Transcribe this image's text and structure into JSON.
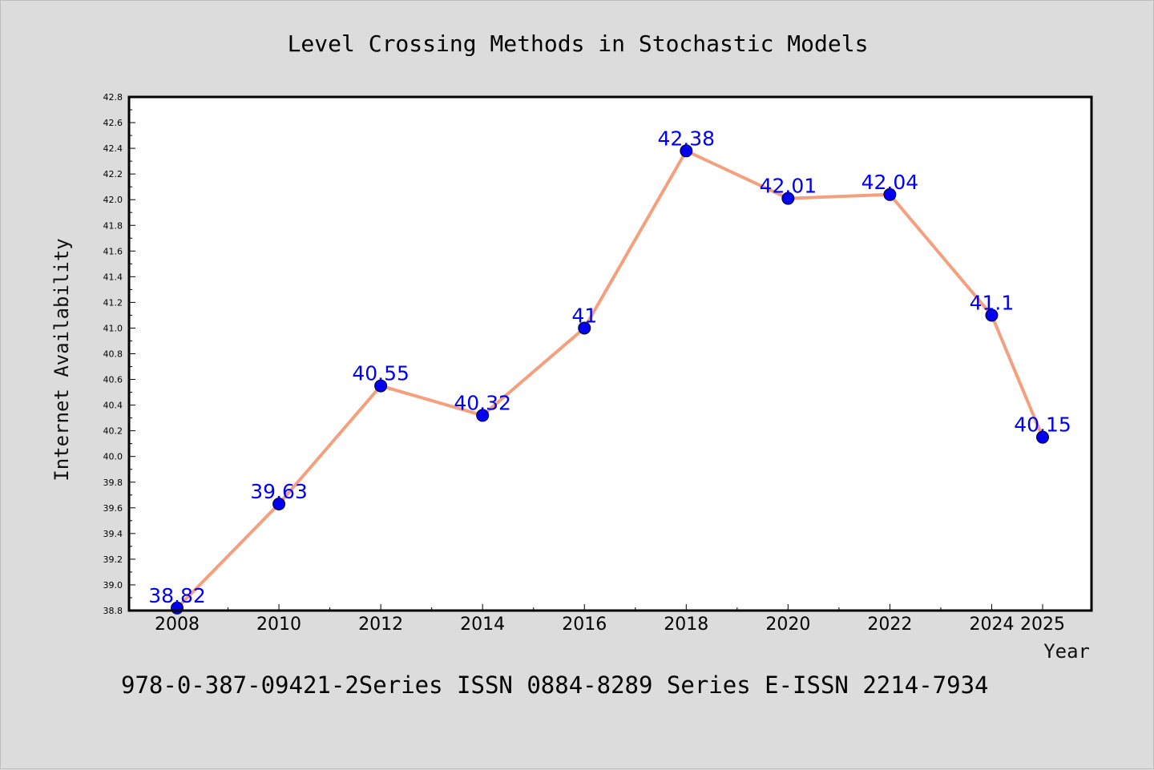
{
  "chart_data": {
    "type": "line",
    "title": "Level Crossing Methods in Stochastic Models",
    "xlabel": "Year",
    "ylabel": "Internet Availability",
    "footer": "978-0-387-09421-2Series ISSN 0884-8289 Series E-ISSN 2214-7934",
    "categories": [
      "2008",
      "2010",
      "2012",
      "2014",
      "2016",
      "2018",
      "2020",
      "2022",
      "2024",
      "2025"
    ],
    "series": [
      {
        "values": [
          38.82,
          39.63,
          40.55,
          40.32,
          41,
          42.38,
          42.01,
          42.04,
          41.1,
          40.15
        ],
        "data_labels": [
          "38.82",
          "39.63",
          "40.55",
          "40.32",
          "41",
          "42.38",
          "42.01",
          "42.04",
          "41.1",
          "40.15"
        ]
      }
    ],
    "ylim": [
      38.8,
      42.8
    ],
    "yticks": [
      "38.8",
      "39.0",
      "39.2",
      "39.4",
      "39.6",
      "39.8",
      "40.0",
      "40.2",
      "40.4",
      "40.6",
      "40.8",
      "41.0",
      "41.2",
      "41.4",
      "41.6",
      "41.8",
      "42.0",
      "42.2",
      "42.4",
      "42.6",
      "42.8"
    ],
    "grid": false,
    "legend": "none",
    "colors": {
      "line": "#f4a07f",
      "marker": "#0000ee",
      "data_label": "#0000ee",
      "page_background": "#dcdcdc",
      "plot_background": "#ffffff"
    }
  }
}
